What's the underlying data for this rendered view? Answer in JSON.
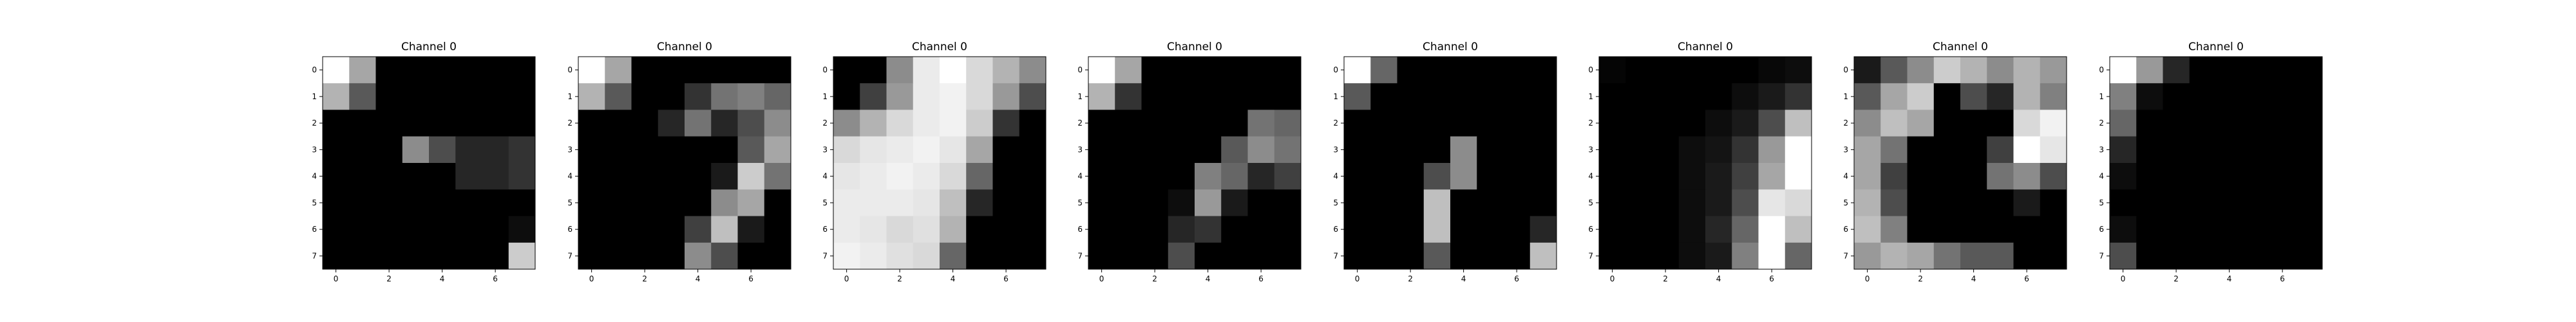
{
  "chart_data": [
    {
      "type": "heatmap",
      "title": "Channel 0",
      "colormap": "gray",
      "value_range": [
        0,
        1
      ],
      "grid": false,
      "x_ticks": [
        "0",
        "2",
        "4",
        "6"
      ],
      "y_ticks": [
        "0",
        "1",
        "2",
        "3",
        "4",
        "5",
        "6",
        "7"
      ],
      "values": [
        [
          1.0,
          0.65,
          0.0,
          0.0,
          0.0,
          0.0,
          0.0,
          0.0
        ],
        [
          0.7,
          0.35,
          0.0,
          0.0,
          0.0,
          0.0,
          0.0,
          0.0
        ],
        [
          0.0,
          0.0,
          0.0,
          0.0,
          0.0,
          0.0,
          0.0,
          0.0
        ],
        [
          0.0,
          0.0,
          0.0,
          0.55,
          0.3,
          0.15,
          0.15,
          0.2
        ],
        [
          0.0,
          0.0,
          0.0,
          0.0,
          0.0,
          0.15,
          0.15,
          0.2
        ],
        [
          0.0,
          0.0,
          0.0,
          0.0,
          0.0,
          0.0,
          0.0,
          0.0
        ],
        [
          0.0,
          0.0,
          0.0,
          0.0,
          0.0,
          0.0,
          0.0,
          0.05
        ],
        [
          0.0,
          0.0,
          0.0,
          0.0,
          0.0,
          0.0,
          0.0,
          0.8
        ]
      ]
    },
    {
      "type": "heatmap",
      "title": "Channel 0",
      "colormap": "gray",
      "value_range": [
        0,
        1
      ],
      "grid": false,
      "x_ticks": [
        "0",
        "2",
        "4",
        "6"
      ],
      "y_ticks": [
        "0",
        "1",
        "2",
        "3",
        "4",
        "5",
        "6",
        "7"
      ],
      "values": [
        [
          1.0,
          0.65,
          0.0,
          0.0,
          0.0,
          0.0,
          0.0,
          0.0
        ],
        [
          0.7,
          0.35,
          0.0,
          0.0,
          0.2,
          0.45,
          0.5,
          0.4
        ],
        [
          0.0,
          0.0,
          0.0,
          0.15,
          0.45,
          0.15,
          0.3,
          0.55
        ],
        [
          0.0,
          0.0,
          0.0,
          0.0,
          0.0,
          0.0,
          0.35,
          0.65
        ],
        [
          0.0,
          0.0,
          0.0,
          0.0,
          0.0,
          0.1,
          0.8,
          0.45
        ],
        [
          0.0,
          0.0,
          0.0,
          0.0,
          0.0,
          0.55,
          0.65,
          0.0
        ],
        [
          0.0,
          0.0,
          0.0,
          0.0,
          0.25,
          0.75,
          0.1,
          0.0
        ],
        [
          0.0,
          0.0,
          0.0,
          0.0,
          0.55,
          0.3,
          0.0,
          0.0
        ]
      ]
    },
    {
      "type": "heatmap",
      "title": "Channel 0",
      "colormap": "gray",
      "value_range": [
        0,
        1
      ],
      "grid": false,
      "x_ticks": [
        "0",
        "2",
        "4",
        "6"
      ],
      "y_ticks": [
        "0",
        "1",
        "2",
        "3",
        "4",
        "5",
        "6",
        "7"
      ],
      "values": [
        [
          0.0,
          0.0,
          0.55,
          0.92,
          1.0,
          0.85,
          0.7,
          0.55
        ],
        [
          0.0,
          0.25,
          0.6,
          0.92,
          0.95,
          0.85,
          0.6,
          0.3
        ],
        [
          0.55,
          0.7,
          0.85,
          0.92,
          0.95,
          0.8,
          0.2,
          0.0
        ],
        [
          0.85,
          0.9,
          0.92,
          0.95,
          0.9,
          0.65,
          0.0,
          0.0
        ],
        [
          0.9,
          0.92,
          0.95,
          0.92,
          0.85,
          0.4,
          0.0,
          0.0
        ],
        [
          0.92,
          0.92,
          0.92,
          0.9,
          0.75,
          0.15,
          0.0,
          0.0
        ],
        [
          0.92,
          0.9,
          0.85,
          0.88,
          0.7,
          0.0,
          0.0,
          0.0
        ],
        [
          0.95,
          0.92,
          0.88,
          0.85,
          0.4,
          0.0,
          0.0,
          0.0
        ]
      ]
    },
    {
      "type": "heatmap",
      "title": "Channel 0",
      "colormap": "gray",
      "value_range": [
        0,
        1
      ],
      "grid": false,
      "x_ticks": [
        "0",
        "2",
        "4",
        "6"
      ],
      "y_ticks": [
        "0",
        "1",
        "2",
        "3",
        "4",
        "5",
        "6",
        "7"
      ],
      "values": [
        [
          1.0,
          0.65,
          0.0,
          0.0,
          0.0,
          0.0,
          0.0,
          0.0
        ],
        [
          0.7,
          0.2,
          0.0,
          0.0,
          0.0,
          0.0,
          0.0,
          0.0
        ],
        [
          0.0,
          0.0,
          0.0,
          0.0,
          0.0,
          0.0,
          0.45,
          0.4
        ],
        [
          0.0,
          0.0,
          0.0,
          0.0,
          0.0,
          0.35,
          0.55,
          0.45
        ],
        [
          0.0,
          0.0,
          0.0,
          0.0,
          0.5,
          0.4,
          0.15,
          0.25
        ],
        [
          0.0,
          0.0,
          0.0,
          0.05,
          0.6,
          0.1,
          0.0,
          0.0
        ],
        [
          0.0,
          0.0,
          0.0,
          0.15,
          0.2,
          0.0,
          0.0,
          0.0
        ],
        [
          0.0,
          0.0,
          0.0,
          0.3,
          0.0,
          0.0,
          0.0,
          0.0
        ]
      ]
    },
    {
      "type": "heatmap",
      "title": "Channel 0",
      "colormap": "gray",
      "value_range": [
        0,
        1
      ],
      "grid": false,
      "x_ticks": [
        "0",
        "2",
        "4",
        "6"
      ],
      "y_ticks": [
        "0",
        "1",
        "2",
        "3",
        "4",
        "5",
        "6",
        "7"
      ],
      "values": [
        [
          1.0,
          0.4,
          0.0,
          0.0,
          0.0,
          0.0,
          0.0,
          0.0
        ],
        [
          0.35,
          0.0,
          0.0,
          0.0,
          0.0,
          0.0,
          0.0,
          0.0
        ],
        [
          0.0,
          0.0,
          0.0,
          0.0,
          0.0,
          0.0,
          0.0,
          0.0
        ],
        [
          0.0,
          0.0,
          0.0,
          0.0,
          0.55,
          0.0,
          0.0,
          0.0
        ],
        [
          0.0,
          0.0,
          0.0,
          0.3,
          0.55,
          0.0,
          0.0,
          0.0
        ],
        [
          0.0,
          0.0,
          0.0,
          0.75,
          0.0,
          0.0,
          0.0,
          0.0
        ],
        [
          0.0,
          0.0,
          0.0,
          0.75,
          0.0,
          0.0,
          0.0,
          0.15
        ],
        [
          0.0,
          0.0,
          0.0,
          0.35,
          0.0,
          0.0,
          0.0,
          0.75
        ]
      ]
    },
    {
      "type": "heatmap",
      "title": "Channel 0",
      "colormap": "gray",
      "value_range": [
        0,
        1
      ],
      "grid": false,
      "x_ticks": [
        "0",
        "2",
        "4",
        "6"
      ],
      "y_ticks": [
        "0",
        "1",
        "2",
        "3",
        "4",
        "5",
        "6",
        "7"
      ],
      "values": [
        [
          0.02,
          0.0,
          0.0,
          0.0,
          0.0,
          0.0,
          0.03,
          0.05
        ],
        [
          0.0,
          0.0,
          0.0,
          0.0,
          0.0,
          0.05,
          0.1,
          0.2
        ],
        [
          0.0,
          0.0,
          0.0,
          0.0,
          0.05,
          0.1,
          0.3,
          0.75
        ],
        [
          0.0,
          0.0,
          0.0,
          0.05,
          0.08,
          0.2,
          0.6,
          1.0
        ],
        [
          0.0,
          0.0,
          0.0,
          0.05,
          0.1,
          0.25,
          0.65,
          1.0
        ],
        [
          0.0,
          0.0,
          0.0,
          0.05,
          0.1,
          0.3,
          0.9,
          0.85
        ],
        [
          0.0,
          0.0,
          0.0,
          0.05,
          0.15,
          0.4,
          1.0,
          0.75
        ],
        [
          0.0,
          0.0,
          0.0,
          0.05,
          0.1,
          0.5,
          1.0,
          0.4
        ]
      ]
    },
    {
      "type": "heatmap",
      "title": "Channel 0",
      "colormap": "gray",
      "value_range": [
        0,
        1
      ],
      "grid": false,
      "x_ticks": [
        "0",
        "2",
        "4",
        "6"
      ],
      "y_ticks": [
        "0",
        "1",
        "2",
        "3",
        "4",
        "5",
        "6",
        "7"
      ],
      "values": [
        [
          0.1,
          0.35,
          0.55,
          0.8,
          0.7,
          0.55,
          0.7,
          0.6
        ],
        [
          0.35,
          0.65,
          0.8,
          0.0,
          0.3,
          0.15,
          0.7,
          0.5
        ],
        [
          0.55,
          0.75,
          0.65,
          0.0,
          0.0,
          0.0,
          0.85,
          0.95
        ],
        [
          0.65,
          0.45,
          0.0,
          0.0,
          0.0,
          0.25,
          1.0,
          0.9
        ],
        [
          0.65,
          0.25,
          0.0,
          0.0,
          0.0,
          0.45,
          0.55,
          0.3
        ],
        [
          0.7,
          0.3,
          0.0,
          0.0,
          0.0,
          0.0,
          0.1,
          0.0
        ],
        [
          0.75,
          0.5,
          0.0,
          0.0,
          0.0,
          0.0,
          0.0,
          0.0
        ],
        [
          0.6,
          0.7,
          0.65,
          0.45,
          0.35,
          0.35,
          0.0,
          0.0
        ]
      ]
    },
    {
      "type": "heatmap",
      "title": "Channel 0",
      "colormap": "gray",
      "value_range": [
        0,
        1
      ],
      "grid": false,
      "x_ticks": [
        "0",
        "2",
        "4",
        "6"
      ],
      "y_ticks": [
        "0",
        "1",
        "2",
        "3",
        "4",
        "5",
        "6",
        "7"
      ],
      "values": [
        [
          1.0,
          0.6,
          0.15,
          0.0,
          0.0,
          0.0,
          0.0,
          0.0
        ],
        [
          0.5,
          0.05,
          0.0,
          0.0,
          0.0,
          0.0,
          0.0,
          0.0
        ],
        [
          0.4,
          0.0,
          0.0,
          0.0,
          0.0,
          0.0,
          0.0,
          0.0
        ],
        [
          0.15,
          0.0,
          0.0,
          0.0,
          0.0,
          0.0,
          0.0,
          0.0
        ],
        [
          0.05,
          0.0,
          0.0,
          0.0,
          0.0,
          0.0,
          0.0,
          0.0
        ],
        [
          0.0,
          0.0,
          0.0,
          0.0,
          0.0,
          0.0,
          0.0,
          0.0
        ],
        [
          0.05,
          0.0,
          0.0,
          0.0,
          0.0,
          0.0,
          0.0,
          0.0
        ],
        [
          0.3,
          0.0,
          0.0,
          0.0,
          0.0,
          0.0,
          0.0,
          0.0
        ]
      ]
    }
  ]
}
